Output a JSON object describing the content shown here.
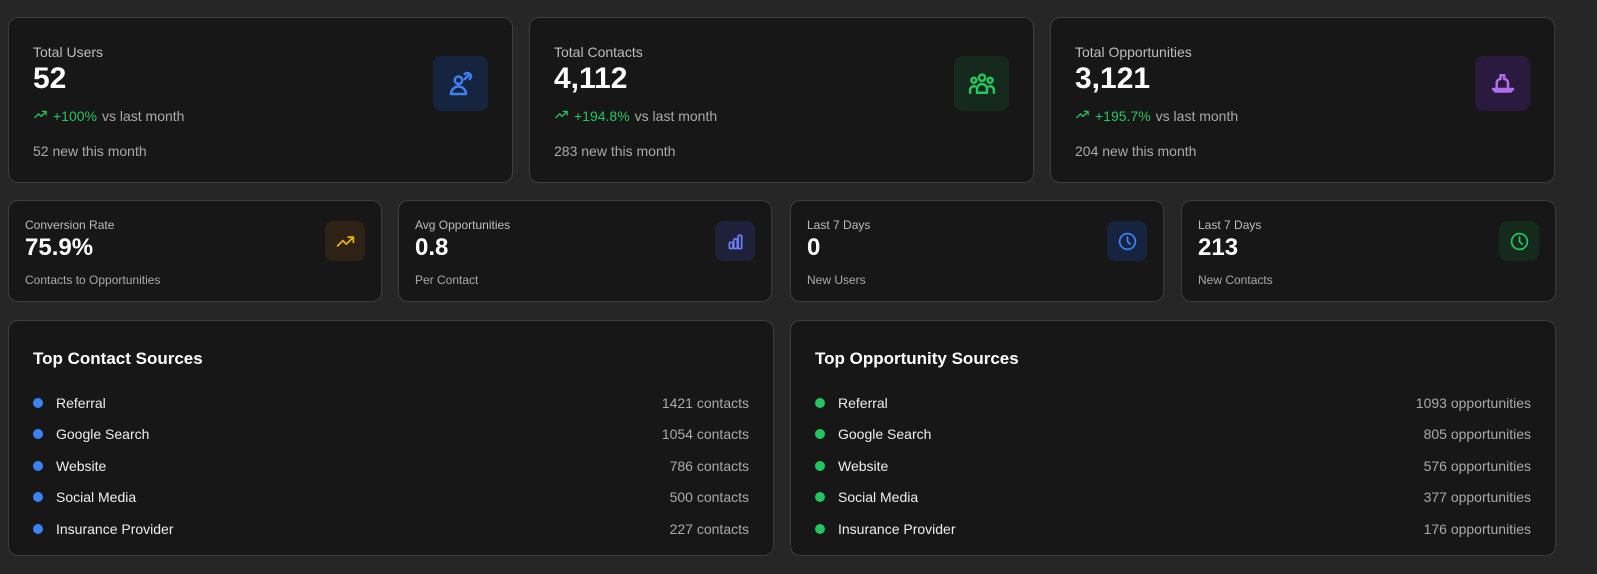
{
  "colors": {
    "positive": "#22c55e",
    "contactDot": "#3b82f6",
    "opportunityDot": "#22c55e"
  },
  "summary": [
    {
      "label": "Total Users",
      "value": "52",
      "change": "+100%",
      "change_suffix": "vs last month",
      "sub": "52 new this month",
      "icon": "user-switch-icon",
      "iconColor": "#3b82f6",
      "iconBg": "#17243f"
    },
    {
      "label": "Total Contacts",
      "value": "4,112",
      "change": "+194.8%",
      "change_suffix": "vs last month",
      "sub": "283 new this month",
      "icon": "users-group-icon",
      "iconColor": "#22c55e",
      "iconBg": "#15291c"
    },
    {
      "label": "Total Opportunities",
      "value": "3,121",
      "change": "+195.7%",
      "change_suffix": "vs last month",
      "sub": "204 new this month",
      "icon": "boat-icon",
      "iconColor": "#b26cf0",
      "iconBg": "#2a1a3d"
    }
  ],
  "stats": [
    {
      "label": "Conversion Rate",
      "value": "75.9%",
      "sub": "Contacts to Opportunities",
      "icon": "trending-up-icon",
      "iconColor": "#eab308",
      "iconBg": "#2e2216"
    },
    {
      "label": "Avg Opportunities",
      "value": "0.8",
      "sub": "Per Contact",
      "icon": "bar-chart-icon",
      "iconColor": "#6b7cf5",
      "iconBg": "#1f2039"
    },
    {
      "label": "Last 7 Days",
      "value": "0",
      "sub": "New Users",
      "icon": "clock-icon",
      "iconColor": "#3b82f6",
      "iconBg": "#17243f"
    },
    {
      "label": "Last 7 Days",
      "value": "213",
      "sub": "New Contacts",
      "icon": "clock-icon",
      "iconColor": "#22c55e",
      "iconBg": "#15291c"
    }
  ],
  "contactSources": {
    "title": "Top Contact Sources",
    "items": [
      {
        "name": "Referral",
        "value": "1421 contacts"
      },
      {
        "name": "Google Search",
        "value": "1054 contacts"
      },
      {
        "name": "Website",
        "value": "786 contacts"
      },
      {
        "name": "Social Media",
        "value": "500 contacts"
      },
      {
        "name": "Insurance Provider",
        "value": "227 contacts"
      }
    ]
  },
  "opportunitySources": {
    "title": "Top Opportunity Sources",
    "items": [
      {
        "name": "Referral",
        "value": "1093 opportunities"
      },
      {
        "name": "Google Search",
        "value": "805 opportunities"
      },
      {
        "name": "Website",
        "value": "576 opportunities"
      },
      {
        "name": "Social Media",
        "value": "377 opportunities"
      },
      {
        "name": "Insurance Provider",
        "value": "176 opportunities"
      }
    ]
  }
}
